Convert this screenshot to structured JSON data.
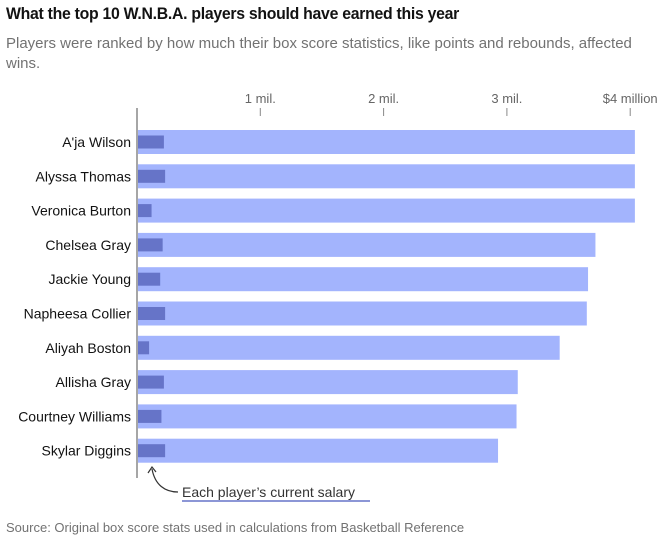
{
  "header": {
    "title": "What the top 10 W.N.B.A. players should have earned this year",
    "subtitle": "Players were ranked by how much their box score statistics, like points and rebounds, affected wins."
  },
  "footer": {
    "source": "Source: Original box score stats used in calculations from Basketball Reference"
  },
  "chart_data": {
    "type": "bar",
    "orientation": "horizontal",
    "title": "What the top 10 W.N.B.A. players should have earned this year",
    "xlabel": "",
    "ylabel": "",
    "xlim": [
      0,
      4.2
    ],
    "unit": "million dollars",
    "ticks": [
      {
        "value": 1,
        "label": "1 mil."
      },
      {
        "value": 2,
        "label": "2 mil."
      },
      {
        "value": 3,
        "label": "3 mil."
      },
      {
        "value": 4,
        "label": "$4 million"
      }
    ],
    "categories": [
      "A'ja Wilson",
      "Alyssa Thomas",
      "Veronica Burton",
      "Chelsea Gray",
      "Jackie Young",
      "Napheesa Collier",
      "Aliyah Boston",
      "Allisha Gray",
      "Courtney Williams",
      "Skylar Diggins"
    ],
    "series": [
      {
        "name": "Should have earned",
        "color": "#a3b4fd",
        "values": [
          4.03,
          4.03,
          4.03,
          3.71,
          3.65,
          3.64,
          3.42,
          3.08,
          3.07,
          2.92
        ]
      },
      {
        "name": "Current salary",
        "color": "#6674c8",
        "values": [
          0.21,
          0.22,
          0.11,
          0.2,
          0.18,
          0.22,
          0.09,
          0.21,
          0.19,
          0.22
        ]
      }
    ],
    "annotation": "Each player’s current salary",
    "grid": false,
    "legend": "none"
  }
}
